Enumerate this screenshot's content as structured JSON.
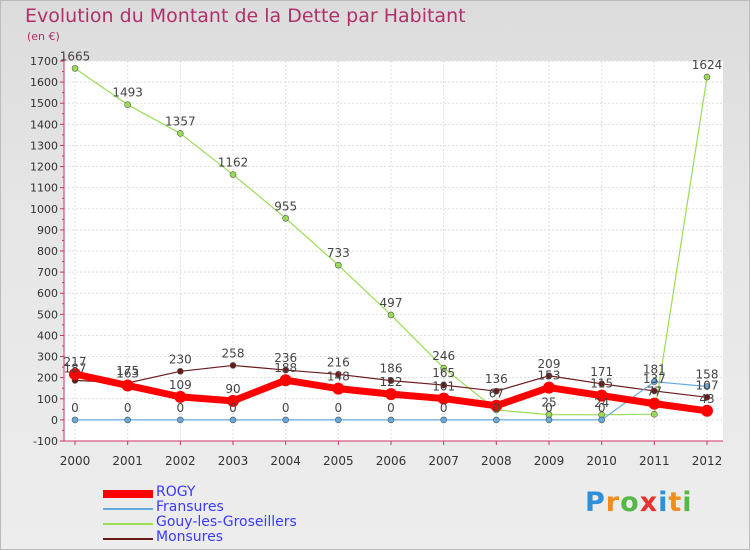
{
  "title": "Evolution du Montant de la Dette par Habitant",
  "unit": "(en €)",
  "logo_text": "Proxiti",
  "chart_data": {
    "type": "line",
    "x": [
      "2000",
      "2001",
      "2002",
      "2003",
      "2004",
      "2005",
      "2006",
      "2007",
      "2008",
      "2009",
      "2010",
      "2011",
      "2012"
    ],
    "ylim": [
      -100,
      1700
    ],
    "yticks": [
      -100,
      0,
      100,
      200,
      300,
      400,
      500,
      600,
      700,
      800,
      900,
      1000,
      1100,
      1200,
      1300,
      1400,
      1500,
      1600,
      1700
    ],
    "grid": true,
    "legend_position": "bottom-left",
    "series": [
      {
        "name": "ROGY",
        "color": "#ff0000",
        "values": [
          217,
          163,
          109,
          90,
          188,
          148,
          122,
          101,
          67,
          153,
          115,
          77,
          43
        ],
        "labels": [
          "217",
          "163",
          "109",
          "90",
          "188",
          "148",
          "122",
          "101",
          "67",
          "153",
          "115",
          "77",
          "43"
        ],
        "label_color": "#444444"
      },
      {
        "name": "Fransures",
        "color": "#66aadd",
        "values": [
          0,
          0,
          0,
          0,
          0,
          0,
          0,
          0,
          0,
          0,
          0,
          181,
          158
        ],
        "labels": [
          "0",
          "0",
          "0",
          "0",
          "0",
          "0",
          "0",
          "0",
          "0",
          "0",
          "0",
          "181",
          "158"
        ],
        "label_color": "#444444"
      },
      {
        "name": "Gouy-les-Groseillers",
        "color": "#99dd55",
        "values": [
          1665,
          1493,
          1357,
          1162,
          955,
          733,
          497,
          246,
          47,
          25,
          24,
          27,
          1624
        ],
        "labels": [
          "1665",
          "1493",
          "1357",
          "1162",
          "955",
          "733",
          "497",
          "246",
          "",
          "25",
          "24",
          "",
          "1624"
        ],
        "label_color": "#444444"
      },
      {
        "name": "Monsures",
        "color": "#6b1a1a",
        "values": [
          187,
          175,
          230,
          258,
          236,
          216,
          186,
          165,
          136,
          209,
          171,
          137,
          107
        ],
        "labels": [
          "187",
          "175",
          "230",
          "258",
          "236",
          "216",
          "186",
          "165",
          "136",
          "209",
          "171",
          "137",
          "107"
        ],
        "label_color": "#444444"
      }
    ]
  }
}
